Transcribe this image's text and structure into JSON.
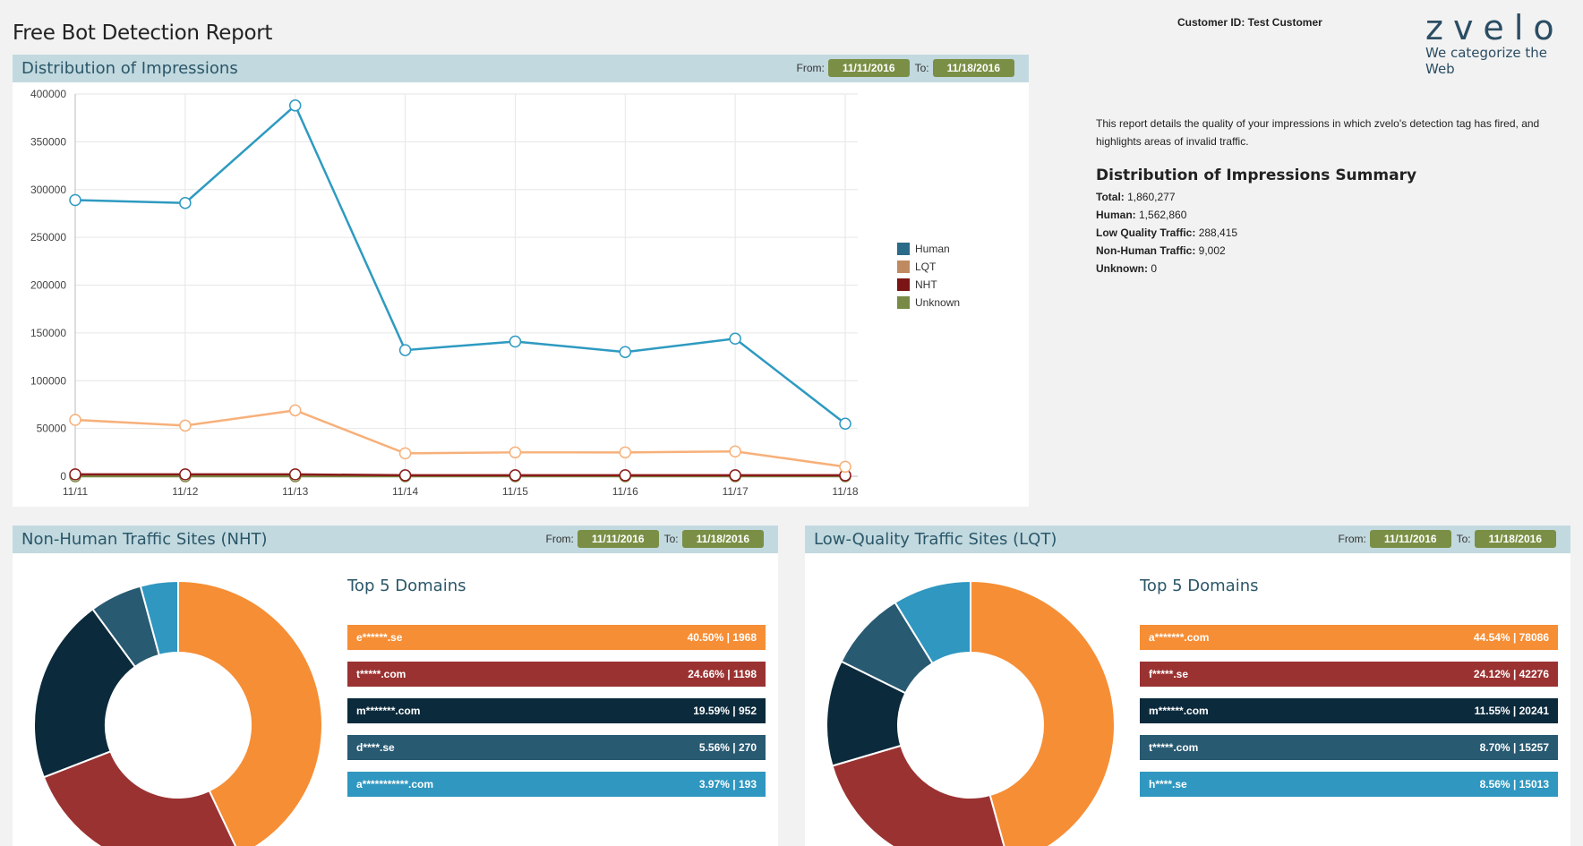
{
  "header": {
    "title": "Free Bot Detection Report",
    "customer_label": "Customer ID: Test Customer",
    "logo_word": "zvelo",
    "logo_tagline": "We categorize the Web"
  },
  "date_range": {
    "from_label": "From:",
    "to_label": "To:",
    "from": "11/11/2016",
    "to": "11/18/2016"
  },
  "impressions": {
    "title": "Distribution of Impressions",
    "chart_data": {
      "type": "line",
      "x": [
        "11/11",
        "11/12",
        "11/13",
        "11/14",
        "11/15",
        "11/16",
        "11/17",
        "11/18"
      ],
      "ylim": [
        0,
        400000
      ],
      "yticks": [
        0,
        50000,
        100000,
        150000,
        200000,
        250000,
        300000,
        350000,
        400000
      ],
      "grid": true,
      "legend_position": "right",
      "series": [
        {
          "name": "Human",
          "color": "#2e9ac1",
          "values": [
            289000,
            286000,
            388000,
            132000,
            141000,
            130000,
            144000,
            55000
          ]
        },
        {
          "name": "LQT",
          "color": "#f7b07a",
          "values": [
            59000,
            53000,
            69000,
            24000,
            25000,
            25000,
            26000,
            10000
          ]
        },
        {
          "name": "NHT",
          "color": "#8b1a1a",
          "values": [
            2000,
            2000,
            2000,
            1000,
            1000,
            1000,
            1000,
            1000
          ]
        },
        {
          "name": "Unknown",
          "color": "#788a45",
          "values": [
            0,
            0,
            0,
            0,
            0,
            0,
            0,
            0
          ]
        }
      ]
    },
    "legend_colors": [
      "#2a6b87",
      "#c08a60",
      "#7b1515",
      "#788a45"
    ]
  },
  "summary": {
    "description": "This report details the quality of your impressions in which zvelo's detection tag has fired, and highlights areas of invalid traffic.",
    "title": "Distribution of Impressions Summary",
    "rows": [
      {
        "label": "Total:",
        "value": "1,860,277"
      },
      {
        "label": "Human:",
        "value": "1,562,860"
      },
      {
        "label": "Low Quality Traffic:",
        "value": "288,415"
      },
      {
        "label": "Non-Human Traffic:",
        "value": "9,002"
      },
      {
        "label": "Unknown:",
        "value": "0"
      }
    ]
  },
  "nht": {
    "title": "Non-Human Traffic Sites (NHT)",
    "top5_title": "Top 5 Domains",
    "chart_data": {
      "type": "pie",
      "labels": [
        "e******.se",
        "t*****.com",
        "m*******.com",
        "d****.se",
        "a***********.com"
      ],
      "values": [
        40.5,
        24.66,
        19.59,
        5.56,
        3.97
      ],
      "colors": [
        "#f68e35",
        "#9b3232",
        "#0b2a3c",
        "#285a72",
        "#2f97c0"
      ]
    },
    "domains": [
      {
        "name": "e******.se",
        "stat": "40.50% | 1968",
        "color": "#f68e35"
      },
      {
        "name": "t*****.com",
        "stat": "24.66% | 1198",
        "color": "#9b3232"
      },
      {
        "name": "m*******.com",
        "stat": "19.59% | 952",
        "color": "#0b2a3c"
      },
      {
        "name": "d****.se",
        "stat": "5.56% | 270",
        "color": "#285a72"
      },
      {
        "name": "a***********.com",
        "stat": "3.97% | 193",
        "color": "#2f97c0"
      }
    ]
  },
  "lqt": {
    "title": "Low-Quality Traffic Sites (LQT)",
    "top5_title": "Top 5 Domains",
    "chart_data": {
      "type": "pie",
      "labels": [
        "a*******.com",
        "f*****.se",
        "m******.com",
        "t*****.com",
        "h****.se"
      ],
      "values": [
        44.54,
        24.12,
        11.55,
        8.7,
        8.56
      ],
      "colors": [
        "#f68e35",
        "#9b3232",
        "#0b2a3c",
        "#285a72",
        "#2f97c0"
      ]
    },
    "domains": [
      {
        "name": "a*******.com",
        "stat": "44.54% | 78086",
        "color": "#f68e35"
      },
      {
        "name": "f*****.se",
        "stat": "24.12% | 42276",
        "color": "#9b3232"
      },
      {
        "name": "m******.com",
        "stat": "11.55% | 20241",
        "color": "#0b2a3c"
      },
      {
        "name": "t*****.com",
        "stat": "8.70% | 15257",
        "color": "#285a72"
      },
      {
        "name": "h****.se",
        "stat": "8.56% | 15013",
        "color": "#2f97c0"
      }
    ]
  }
}
